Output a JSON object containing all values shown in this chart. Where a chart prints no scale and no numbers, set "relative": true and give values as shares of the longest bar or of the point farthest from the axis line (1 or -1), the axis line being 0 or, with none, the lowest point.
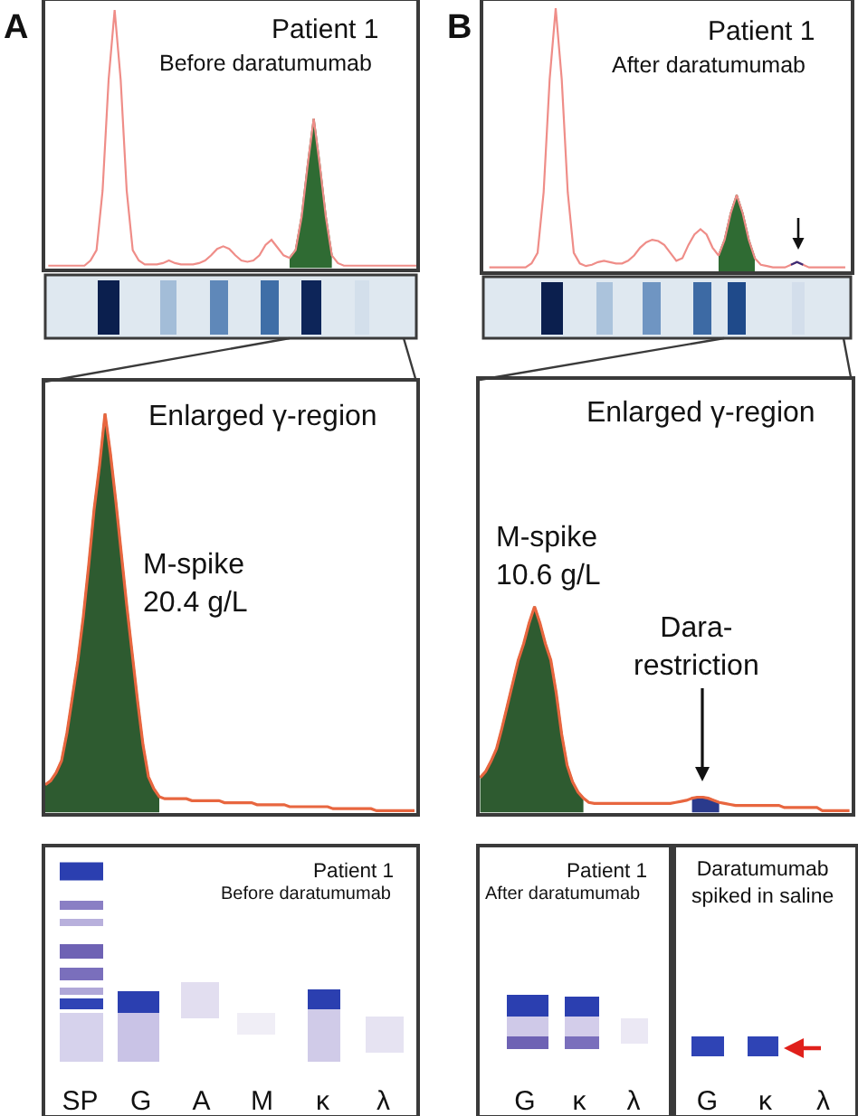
{
  "chart_data": [
    {
      "type": "line",
      "relative": true,
      "title": "Patient 1",
      "subtitle": "Before daratumumab",
      "annotations": [
        "A"
      ],
      "categories": [
        null,
        null,
        null,
        null,
        null,
        null,
        null,
        null,
        null,
        null,
        null,
        null,
        null,
        null,
        null,
        null,
        null,
        null,
        null,
        null,
        null,
        null,
        null,
        null,
        null,
        null,
        null,
        null,
        null,
        null,
        null,
        null,
        null,
        null,
        null,
        null,
        null,
        null,
        null,
        null,
        null,
        null,
        null,
        null,
        null,
        null,
        null,
        null,
        null,
        null,
        null,
        null,
        null,
        null,
        null,
        null,
        null,
        null,
        null,
        null,
        null,
        null
      ],
      "series": [
        {
          "type": "area",
          "color": "#2f6b33",
          "values": [
            null,
            null,
            null,
            null,
            null,
            null,
            null,
            null,
            null,
            null,
            null,
            null,
            null,
            null,
            null,
            null,
            null,
            null,
            null,
            null,
            null,
            null,
            null,
            null,
            null,
            null,
            null,
            null,
            null,
            null,
            null,
            null,
            null,
            null,
            null,
            null,
            null,
            null,
            null,
            null,
            0.04,
            0.07,
            0.2,
            0.4,
            0.58,
            0.4,
            0.2,
            0.05,
            null,
            null,
            null,
            null,
            null,
            null,
            null,
            null,
            null,
            null,
            null,
            null,
            null,
            null
          ]
        },
        {
          "type": "line",
          "color": "#ef8d88",
          "values": [
            0.01,
            0.01,
            0.01,
            0.01,
            0.01,
            0.01,
            0.01,
            0.03,
            0.07,
            0.3,
            0.73,
            1.0,
            0.73,
            0.3,
            0.07,
            0.03,
            0.015,
            0.015,
            0.015,
            0.02,
            0.03,
            0.02,
            0.015,
            0.015,
            0.015,
            0.02,
            0.03,
            0.05,
            0.075,
            0.085,
            0.075,
            0.05,
            0.03,
            0.025,
            0.03,
            0.05,
            0.09,
            0.11,
            0.08,
            0.05,
            0.04,
            0.07,
            0.2,
            0.4,
            0.58,
            0.4,
            0.2,
            0.05,
            0.02,
            0.01,
            0.01,
            0.01,
            0.01,
            0.01,
            0.01,
            0.01,
            0.01,
            0.01,
            0.01,
            0.01,
            0.01,
            0.01
          ]
        }
      ]
    },
    {
      "type": "line",
      "relative": true,
      "title": "Patient 1",
      "subtitle": "After daratumumab",
      "annotations": [
        "B"
      ],
      "categories": [
        null,
        null,
        null,
        null,
        null,
        null,
        null,
        null,
        null,
        null,
        null,
        null,
        null,
        null,
        null,
        null,
        null,
        null,
        null,
        null,
        null,
        null,
        null,
        null,
        null,
        null,
        null,
        null,
        null,
        null,
        null,
        null,
        null,
        null,
        null,
        null,
        null,
        null,
        null,
        null,
        null,
        null,
        null,
        null,
        null,
        null,
        null,
        null,
        null,
        null,
        null,
        null,
        null,
        null,
        null,
        null,
        null,
        null,
        null,
        null
      ],
      "series": [
        {
          "type": "area",
          "color": "#2f6b33",
          "values": [
            null,
            null,
            null,
            null,
            null,
            null,
            null,
            null,
            null,
            null,
            null,
            null,
            null,
            null,
            null,
            null,
            null,
            null,
            null,
            null,
            null,
            null,
            null,
            null,
            null,
            null,
            null,
            null,
            null,
            null,
            null,
            null,
            null,
            null,
            null,
            null,
            null,
            null,
            0.06,
            0.12,
            0.22,
            0.29,
            0.22,
            0.12,
            0.05,
            null,
            null,
            null,
            null,
            null,
            null,
            null,
            null,
            null,
            null,
            null,
            null,
            null,
            null,
            null
          ]
        },
        {
          "type": "line",
          "color": "#ef8d88",
          "values": [
            0.015,
            0.015,
            0.015,
            0.015,
            0.015,
            0.015,
            0.015,
            0.03,
            0.07,
            0.3,
            0.73,
            1.0,
            0.73,
            0.3,
            0.07,
            0.03,
            0.02,
            0.025,
            0.035,
            0.04,
            0.035,
            0.03,
            0.03,
            0.04,
            0.06,
            0.09,
            0.11,
            0.12,
            0.115,
            0.1,
            0.07,
            0.04,
            0.05,
            0.1,
            0.14,
            0.16,
            0.14,
            0.09,
            0.06,
            0.12,
            0.22,
            0.29,
            0.22,
            0.12,
            0.05,
            0.025,
            0.02,
            0.015,
            0.015,
            0.015,
            0.025,
            0.035,
            0.025,
            0.015,
            0.015,
            0.015,
            0.015,
            0.015,
            0.015,
            0.015
          ]
        },
        {
          "type": "line",
          "color": "#3b2d78",
          "values": [
            null,
            null,
            null,
            null,
            null,
            null,
            null,
            null,
            null,
            null,
            null,
            null,
            null,
            null,
            null,
            null,
            null,
            null,
            null,
            null,
            null,
            null,
            null,
            null,
            null,
            null,
            null,
            null,
            null,
            null,
            null,
            null,
            null,
            null,
            null,
            null,
            null,
            null,
            null,
            null,
            null,
            null,
            null,
            null,
            null,
            null,
            null,
            null,
            null,
            null,
            0.025,
            0.035,
            0.025,
            null,
            null,
            null,
            null,
            null,
            null,
            null
          ]
        }
      ]
    },
    {
      "type": "line",
      "relative": true,
      "title": "Enlarged γ-region",
      "annotations": [
        "M-spike\n20.4 g/L"
      ],
      "categories": [
        null,
        null,
        null,
        null,
        null,
        null,
        null,
        null,
        null,
        null,
        null,
        null,
        null,
        null,
        null,
        null,
        null,
        null,
        null,
        null,
        null,
        null,
        null,
        null,
        null,
        null,
        null,
        null,
        null,
        null,
        null,
        null,
        null,
        null,
        null,
        null,
        null,
        null,
        null,
        null,
        null,
        null,
        null,
        null,
        null,
        null,
        null,
        null,
        null,
        null,
        null,
        null,
        null,
        null,
        null,
        null,
        null,
        null,
        null,
        null,
        null,
        null,
        null,
        null,
        null,
        null,
        null,
        null,
        null
      ],
      "series": [
        {
          "type": "area",
          "color": "#2e5b30",
          "values": [
            0.07,
            0.08,
            0.1,
            0.13,
            0.2,
            0.29,
            0.38,
            0.49,
            0.62,
            0.76,
            0.87,
            1.0,
            0.9,
            0.78,
            0.65,
            0.52,
            0.4,
            0.28,
            0.17,
            0.09,
            0.06,
            0.04,
            null,
            null,
            null,
            null,
            null,
            null,
            null,
            null,
            null,
            null,
            null,
            null,
            null,
            null,
            null,
            null,
            null,
            null,
            null,
            null,
            null,
            null,
            null,
            null,
            null,
            null,
            null,
            null,
            null,
            null,
            null,
            null,
            null,
            null,
            null,
            null,
            null,
            null,
            null,
            null,
            null,
            null,
            null,
            null,
            null,
            null,
            null
          ]
        },
        {
          "type": "line",
          "color": "#e8663f",
          "values": [
            0.07,
            0.08,
            0.1,
            0.13,
            0.2,
            0.29,
            0.38,
            0.49,
            0.62,
            0.76,
            0.87,
            1.0,
            0.9,
            0.78,
            0.65,
            0.52,
            0.4,
            0.28,
            0.17,
            0.09,
            0.06,
            0.04,
            0.035,
            0.035,
            0.035,
            0.035,
            0.035,
            0.03,
            0.03,
            0.03,
            0.03,
            0.03,
            0.03,
            0.025,
            0.025,
            0.025,
            0.025,
            0.025,
            0.025,
            0.02,
            0.02,
            0.02,
            0.02,
            0.02,
            0.02,
            0.015,
            0.015,
            0.015,
            0.015,
            0.015,
            0.015,
            0.015,
            0.015,
            0.01,
            0.01,
            0.01,
            0.01,
            0.01,
            0.01,
            0.01,
            0.01,
            0.005,
            0.005,
            0.005,
            0.005,
            0.005,
            0.005,
            0.005,
            0.005
          ]
        }
      ]
    },
    {
      "type": "line",
      "relative": true,
      "title": "Enlarged γ-region",
      "annotations": [
        "M-spike\n10.6 g/L",
        "Dara-\nrestriction"
      ],
      "categories": [
        null,
        null,
        null,
        null,
        null,
        null,
        null,
        null,
        null,
        null,
        null,
        null,
        null,
        null,
        null,
        null,
        null,
        null,
        null,
        null,
        null,
        null,
        null,
        null,
        null,
        null,
        null,
        null,
        null,
        null,
        null,
        null,
        null,
        null,
        null,
        null,
        null,
        null,
        null,
        null,
        null,
        null,
        null,
        null,
        null,
        null,
        null,
        null,
        null,
        null,
        null,
        null,
        null,
        null,
        null,
        null,
        null,
        null,
        null,
        null,
        null,
        null,
        null,
        null,
        null,
        null,
        null,
        null,
        null
      ],
      "series": [
        {
          "type": "area",
          "color": "#2e5b30",
          "values": [
            0.17,
            0.2,
            0.25,
            0.31,
            0.41,
            0.52,
            0.63,
            0.74,
            0.82,
            0.92,
            1.0,
            0.92,
            0.82,
            0.74,
            0.58,
            0.38,
            0.23,
            0.15,
            0.1,
            0.07,
            null,
            null,
            null,
            null,
            null,
            null,
            null,
            null,
            null,
            null,
            null,
            null,
            null,
            null,
            null,
            null,
            null,
            null,
            null,
            null,
            null,
            null,
            null,
            null,
            null,
            null,
            null,
            null,
            null,
            null,
            null,
            null,
            null,
            null,
            null,
            null,
            null,
            null,
            null,
            null,
            null,
            null,
            null,
            null,
            null,
            null,
            null,
            null,
            null
          ]
        },
        {
          "type": "area",
          "color": "#2a3a8c",
          "values": [
            null,
            null,
            null,
            null,
            null,
            null,
            null,
            null,
            null,
            null,
            null,
            null,
            null,
            null,
            null,
            null,
            null,
            null,
            null,
            null,
            null,
            null,
            null,
            null,
            null,
            null,
            null,
            null,
            null,
            null,
            null,
            null,
            null,
            null,
            null,
            null,
            null,
            null,
            null,
            0.07,
            0.075,
            0.075,
            0.07,
            0.06,
            0.05,
            null,
            null,
            null,
            null,
            null,
            null,
            null,
            null,
            null,
            null,
            null,
            null,
            null,
            null,
            null,
            null,
            null,
            null,
            null,
            null,
            null,
            null,
            null,
            null
          ]
        },
        {
          "type": "line",
          "color": "#e8663f",
          "values": [
            0.17,
            0.2,
            0.25,
            0.31,
            0.41,
            0.52,
            0.63,
            0.74,
            0.82,
            0.92,
            1.0,
            0.92,
            0.82,
            0.74,
            0.58,
            0.38,
            0.23,
            0.15,
            0.1,
            0.07,
            0.05,
            0.045,
            0.045,
            0.045,
            0.045,
            0.045,
            0.045,
            0.045,
            0.045,
            0.045,
            0.045,
            0.045,
            0.045,
            0.045,
            0.045,
            0.045,
            0.05,
            0.055,
            0.06,
            0.07,
            0.075,
            0.075,
            0.07,
            0.06,
            0.05,
            0.045,
            0.04,
            0.035,
            0.035,
            0.035,
            0.035,
            0.035,
            0.035,
            0.035,
            0.035,
            0.035,
            0.025,
            0.025,
            0.025,
            0.025,
            0.025,
            0.025,
            0.025,
            0.01,
            0.01,
            0.01,
            0.01,
            0.01,
            0.01
          ]
        }
      ]
    },
    {
      "type": "other",
      "title": "Patient 1",
      "subtitle": "Before daratumumab",
      "categories": [
        "SP",
        "G",
        "A",
        "M",
        "κ",
        "λ"
      ]
    },
    {
      "type": "other",
      "title": "Patient 1",
      "subtitle": "After daratumumab",
      "categories": [
        "G",
        "κ",
        "λ"
      ]
    },
    {
      "type": "other",
      "title": "Daratumumab\nspiked in saline",
      "categories": [
        "G",
        "κ",
        "λ"
      ]
    }
  ]
}
